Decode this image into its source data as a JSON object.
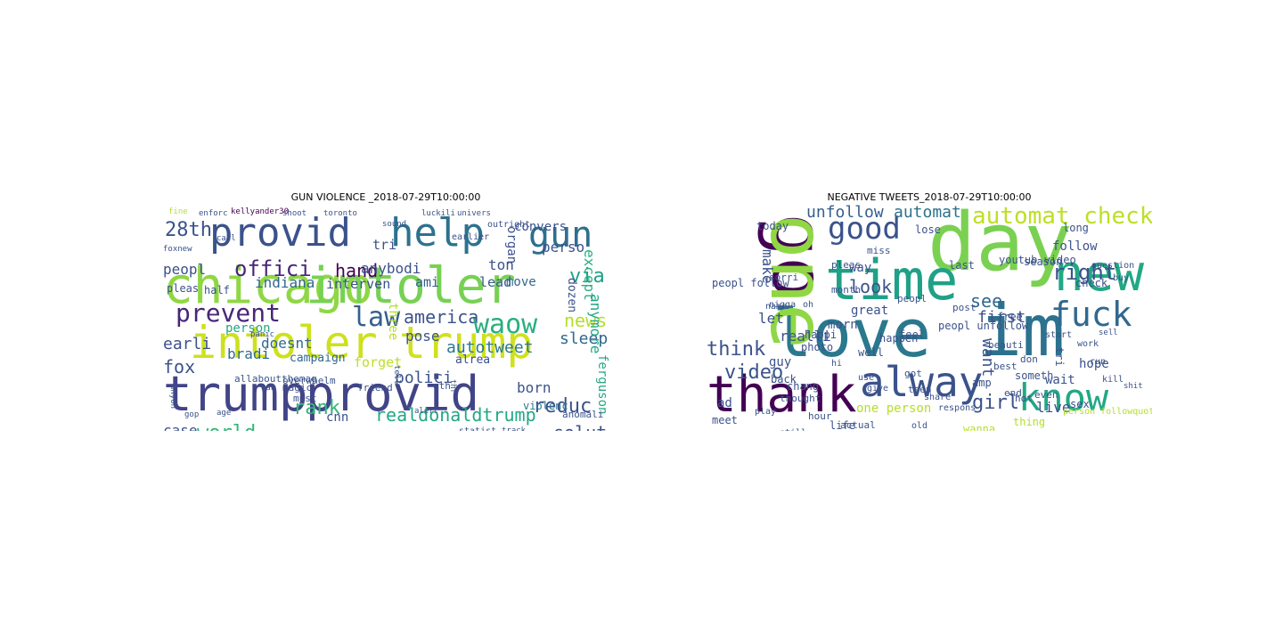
{
  "figure": {
    "panels": [
      {
        "title": "GUN VIOLENCE _2018-07-29T10:00:00",
        "words": [
          {
            "text": "chicago",
            "color": "#8fd744"
          },
          {
            "text": "intoler",
            "color": "#77d153"
          },
          {
            "text": "intoler",
            "color": "#cde11d"
          },
          {
            "text": "trump",
            "color": "#d0e11c"
          },
          {
            "text": "trump",
            "color": "#414487"
          },
          {
            "text": "provid",
            "color": "#414487"
          },
          {
            "text": "provid",
            "color": "#3b528b"
          },
          {
            "text": "help",
            "color": "#2c728e"
          },
          {
            "text": "gun",
            "color": "#2e6f8e"
          },
          {
            "text": "28th",
            "color": "#3b528b"
          },
          {
            "text": "prevent",
            "color": "#482677"
          },
          {
            "text": "law",
            "color": "#355f8d"
          },
          {
            "text": "america",
            "color": "#3b528b"
          },
          {
            "text": "waow",
            "color": "#29af7f"
          },
          {
            "text": "offici",
            "color": "#482677"
          },
          {
            "text": "hand",
            "color": "#440154"
          },
          {
            "text": "indiana",
            "color": "#31688e"
          },
          {
            "text": "interven",
            "color": "#3b528b"
          },
          {
            "text": "anybodi",
            "color": "#3b528b"
          },
          {
            "text": "ami",
            "color": "#355f8d"
          },
          {
            "text": "lead",
            "color": "#38598c"
          },
          {
            "text": "via",
            "color": "#1fa187"
          },
          {
            "text": "news",
            "color": "#b5de2b"
          },
          {
            "text": "sleep",
            "color": "#31688e"
          },
          {
            "text": "peopl",
            "color": "#3b528b"
          },
          {
            "text": "fox",
            "color": "#3b528b"
          },
          {
            "text": "earli",
            "color": "#3b528b"
          },
          {
            "text": "person",
            "color": "#22a884"
          },
          {
            "text": "doesnt",
            "color": "#31688e"
          },
          {
            "text": "pose",
            "color": "#3b528b"
          },
          {
            "text": "autotweet",
            "color": "#2a788e"
          },
          {
            "text": "polici",
            "color": "#3b528b"
          },
          {
            "text": "born",
            "color": "#3b528b"
          },
          {
            "text": "reduc",
            "color": "#3b528b"
          },
          {
            "text": "realdonaldtrump",
            "color": "#22a884"
          },
          {
            "text": "solut",
            "color": "#3b528b"
          },
          {
            "text": "rank",
            "color": "#35b779"
          },
          {
            "text": "world",
            "color": "#35b779"
          },
          {
            "text": "case",
            "color": "#3b528b"
          },
          {
            "text": "effect",
            "color": "#31688e"
          },
          {
            "text": "bradi",
            "color": "#31688e"
          },
          {
            "text": "forget",
            "color": "#bddf26"
          },
          {
            "text": "campaign",
            "color": "#31688e"
          },
          {
            "text": "magic",
            "color": "#3b528b"
          },
          {
            "text": "cnn",
            "color": "#3b528b"
          },
          {
            "text": "tri",
            "color": "#3b528b"
          },
          {
            "text": "ton",
            "color": "#3b528b"
          },
          {
            "text": "move",
            "color": "#31688e"
          },
          {
            "text": "alrea",
            "color": "#3b528b"
          },
          {
            "text": "perso",
            "color": "#3b528b"
          },
          {
            "text": "convers",
            "color": "#3b528b"
          },
          {
            "text": "except",
            "color": "#29af7f"
          },
          {
            "text": "anymore",
            "color": "#22a884"
          },
          {
            "text": "organ",
            "color": "#3b528b"
          },
          {
            "text": "three",
            "color": "#b5de2b"
          },
          {
            "text": "dozen",
            "color": "#3b528b"
          },
          {
            "text": "ferguson",
            "color": "#22a884"
          },
          {
            "text": "violenc",
            "color": "#2a788e"
          },
          {
            "text": "half",
            "color": "#3b528b"
          },
          {
            "text": "pleas",
            "color": "#3b528b"
          },
          {
            "text": "allaboutthemag",
            "color": "#3b528b"
          },
          {
            "text": "overwhelm",
            "color": "#3b528b"
          },
          {
            "text": "friend",
            "color": "#3b528b"
          },
          {
            "text": "must",
            "color": "#3b528b"
          },
          {
            "text": "statist",
            "color": "#3b528b"
          },
          {
            "text": "oth",
            "color": "#3b528b"
          },
          {
            "text": "anomali",
            "color": "#3b528b"
          },
          {
            "text": "outright",
            "color": "#3b528b"
          },
          {
            "text": "earlier",
            "color": "#3b528b"
          },
          {
            "text": "kellyander30",
            "color": "#440154"
          },
          {
            "text": "enforc",
            "color": "#3b528b"
          },
          {
            "text": "shoot",
            "color": "#3b528b"
          },
          {
            "text": "toronto",
            "color": "#3b528b"
          },
          {
            "text": "call",
            "color": "#3b528b"
          },
          {
            "text": "panic",
            "color": "#3b528b"
          },
          {
            "text": "gop",
            "color": "#3b528b"
          },
          {
            "text": "age",
            "color": "#3b528b"
          },
          {
            "text": "univers",
            "color": "#3b528b"
          },
          {
            "text": "luckili",
            "color": "#3b528b"
          },
          {
            "text": "fine",
            "color": "#b5de2b"
          },
          {
            "text": "foxnew",
            "color": "#3b528b"
          },
          {
            "text": "buyback",
            "color": "#3b528b"
          },
          {
            "text": "majorst",
            "color": "#3b528b"
          },
          {
            "text": "program",
            "color": "#3b528b"
          },
          {
            "text": "downright",
            "color": "#3b528b"
          },
          {
            "text": "alert",
            "color": "#3b528b"
          },
          {
            "text": "anyon",
            "color": "#3b528b"
          },
          {
            "text": "sound",
            "color": "#3b528b"
          },
          {
            "text": "ban",
            "color": "#3b528b"
          },
          {
            "text": "thr",
            "color": "#3b528b"
          },
          {
            "text": "tell",
            "color": "#3b528b"
          },
          {
            "text": "track",
            "color": "#3b528b"
          }
        ]
      },
      {
        "title": "NEGATIVE TWEETS_2018-07-29T10:00:00",
        "words": [
          {
            "text": "love",
            "color": "#2a788e"
          },
          {
            "text": "im",
            "color": "#2c728e"
          },
          {
            "text": "day",
            "color": "#7ad151"
          },
          {
            "text": "go",
            "color": "#440154"
          },
          {
            "text": "one",
            "color": "#8fd744"
          },
          {
            "text": "time",
            "color": "#1fa187"
          },
          {
            "text": "new",
            "color": "#22a884"
          },
          {
            "text": "thank",
            "color": "#440154"
          },
          {
            "text": "alway",
            "color": "#3b528b"
          },
          {
            "text": "know",
            "color": "#22a884"
          },
          {
            "text": "good",
            "color": "#3b528b"
          },
          {
            "text": "fuck",
            "color": "#31688e"
          },
          {
            "text": "automat check",
            "color": "#bddf26"
          },
          {
            "text": "unfollow",
            "color": "#355f8d"
          },
          {
            "text": "automat",
            "color": "#2c728e"
          },
          {
            "text": "right",
            "color": "#3b528b"
          },
          {
            "text": "see",
            "color": "#31688e"
          },
          {
            "text": "look",
            "color": "#3b528b"
          },
          {
            "text": "first",
            "color": "#3b528b"
          },
          {
            "text": "think",
            "color": "#3b528b"
          },
          {
            "text": "video",
            "color": "#3b528b"
          },
          {
            "text": "want",
            "color": "#3b528b"
          },
          {
            "text": "girl",
            "color": "#3b528b"
          },
          {
            "text": "live",
            "color": "#3b528b"
          },
          {
            "text": "one person",
            "color": "#b5de2b"
          },
          {
            "text": "make",
            "color": "#3b528b"
          },
          {
            "text": "let",
            "color": "#3b528b"
          },
          {
            "text": "realli",
            "color": "#3b528b"
          },
          {
            "text": "morn",
            "color": "#3b528b"
          },
          {
            "text": "today",
            "color": "#3b528b"
          },
          {
            "text": "way",
            "color": "#3b528b"
          },
          {
            "text": "great",
            "color": "#3b528b"
          },
          {
            "text": "peopl unfollow",
            "color": "#3b528b"
          },
          {
            "text": "hope",
            "color": "#3b528b"
          },
          {
            "text": "wait",
            "color": "#3b528b"
          },
          {
            "text": "sex",
            "color": "#3b528b"
          },
          {
            "text": "thing",
            "color": "#b5de2b"
          },
          {
            "text": "wanna",
            "color": "#b5de2b"
          },
          {
            "text": "amp",
            "color": "#3b528b"
          },
          {
            "text": "back",
            "color": "#3b528b"
          },
          {
            "text": "guy",
            "color": "#3b528b"
          },
          {
            "text": "thought",
            "color": "#3b528b"
          },
          {
            "text": "happen",
            "color": "#3b528b"
          },
          {
            "text": "last",
            "color": "#3b528b"
          },
          {
            "text": "follow",
            "color": "#3b528b"
          },
          {
            "text": "long",
            "color": "#3b528b"
          },
          {
            "text": "check",
            "color": "#3b528b"
          },
          {
            "text": "tri",
            "color": "#3b528b"
          },
          {
            "text": "well",
            "color": "#3b528b"
          },
          {
            "text": "peopl follow",
            "color": "#3b528b"
          },
          {
            "text": "post",
            "color": "#3b528b"
          },
          {
            "text": "pleas",
            "color": "#3b528b"
          },
          {
            "text": "happi",
            "color": "#3b528b"
          },
          {
            "text": "feel",
            "color": "#3b528b"
          },
          {
            "text": "free",
            "color": "#3b528b"
          },
          {
            "text": "photo",
            "color": "#3b528b"
          },
          {
            "text": "chang",
            "color": "#3b528b"
          },
          {
            "text": "life",
            "color": "#3b528b"
          },
          {
            "text": "hot",
            "color": "#3b528b"
          },
          {
            "text": "got",
            "color": "#3b528b"
          },
          {
            "text": "teen",
            "color": "#3b528b"
          },
          {
            "text": "someth",
            "color": "#3b528b"
          },
          {
            "text": "end",
            "color": "#3b528b"
          },
          {
            "text": "even",
            "color": "#3b528b"
          },
          {
            "text": "work",
            "color": "#3b528b"
          },
          {
            "text": "run",
            "color": "#3b528b"
          },
          {
            "text": "lose",
            "color": "#3b528b"
          },
          {
            "text": "season",
            "color": "#3b528b"
          },
          {
            "text": "youtub video",
            "color": "#3b528b"
          },
          {
            "text": "question",
            "color": "#3b528b"
          },
          {
            "text": "nigga",
            "color": "#3b528b"
          },
          {
            "text": "month",
            "color": "#3b528b"
          },
          {
            "text": "sorri",
            "color": "#3b528b"
          },
          {
            "text": "hour",
            "color": "#3b528b"
          },
          {
            "text": "actual",
            "color": "#3b528b"
          },
          {
            "text": "meet",
            "color": "#3b528b"
          },
          {
            "text": "ad",
            "color": "#3b528b"
          },
          {
            "text": "hi",
            "color": "#3b528b"
          },
          {
            "text": "use",
            "color": "#3b528b"
          },
          {
            "text": "give",
            "color": "#3b528b"
          },
          {
            "text": "share",
            "color": "#3b528b"
          },
          {
            "text": "kill",
            "color": "#3b528b"
          },
          {
            "text": "best",
            "color": "#3b528b"
          },
          {
            "text": "beauti",
            "color": "#3b528b"
          },
          {
            "text": "don",
            "color": "#3b528b"
          },
          {
            "text": "start",
            "color": "#3b528b"
          },
          {
            "text": "person followquot",
            "color": "#b5de2b"
          },
          {
            "text": "old",
            "color": "#3b528b"
          },
          {
            "text": "respons",
            "color": "#3b528b"
          },
          {
            "text": "name",
            "color": "#3b528b"
          },
          {
            "text": "oh",
            "color": "#3b528b"
          },
          {
            "text": "play",
            "color": "#3b528b"
          },
          {
            "text": "still",
            "color": "#3b528b"
          },
          {
            "text": "miss",
            "color": "#3b528b"
          },
          {
            "text": "peopl",
            "color": "#3b528b"
          },
          {
            "text": "buy",
            "color": "#3b528b"
          },
          {
            "text": "sell",
            "color": "#3b528b"
          },
          {
            "text": "shit",
            "color": "#3b528b"
          }
        ]
      }
    ]
  }
}
